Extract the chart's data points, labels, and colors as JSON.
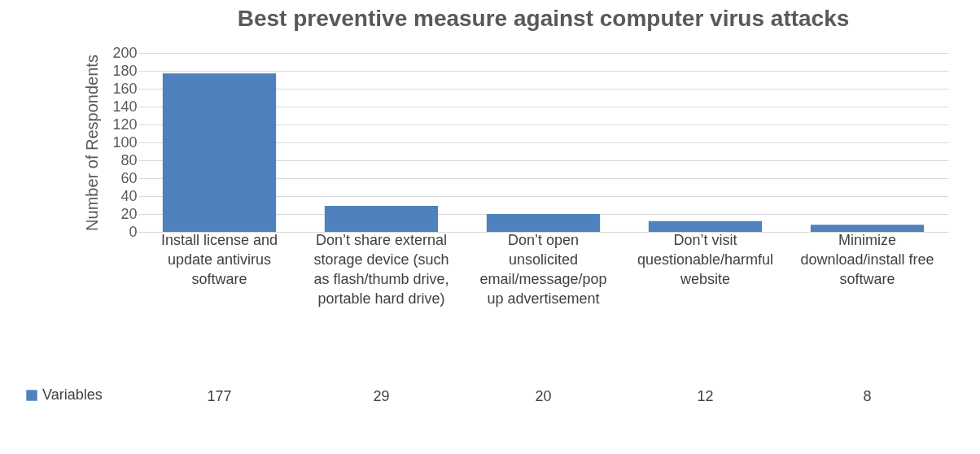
{
  "chart_data": {
    "type": "bar",
    "title": "Best preventive measure against computer virus attacks",
    "ylabel": "Number of Respondents",
    "categories": [
      "Install license and update antivirus software",
      "Don’t share external storage device (such as flash/thumb drive, portable hard drive)",
      "Don’t open unsolicited email/message/pop up advertisement",
      "Don’t visit questionable/harmful website",
      "Minimize download/install free software"
    ],
    "series": [
      {
        "name": "Variables",
        "color": "#4f81bd",
        "values": [
          177,
          29,
          20,
          12,
          8
        ]
      }
    ],
    "ylim": [
      0,
      200
    ],
    "yticks": [
      0,
      20,
      40,
      60,
      80,
      100,
      120,
      140,
      160,
      180,
      200
    ],
    "grid": "y",
    "legend": "bottom left",
    "data_labels": true
  }
}
